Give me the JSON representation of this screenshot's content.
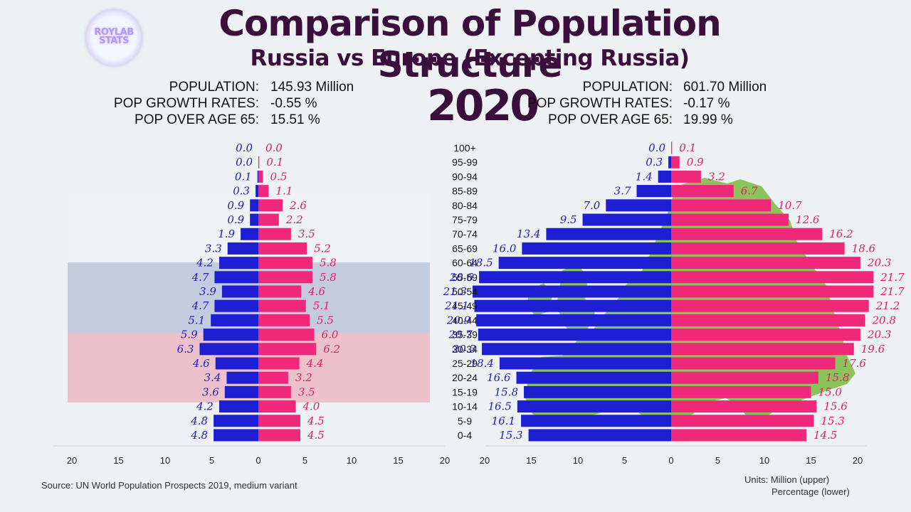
{
  "logo": {
    "line1": "ROYLAB",
    "line2": "STATS"
  },
  "title": "Comparison of Population Structure",
  "subtitle": "Russia vs Europe (Excepting Russia)",
  "year": "2020",
  "colors": {
    "male": "#1e1ed2",
    "female": "#f0287a",
    "title": "#3b0f3b",
    "europe_map": "#8cc35a"
  },
  "stats": {
    "russia": [
      {
        "label": "POPULATION:",
        "value": "145.93 Million"
      },
      {
        "label": "POP GROWTH RATES:",
        "value": "-0.55 %"
      },
      {
        "label": "POP OVER AGE 65:",
        "value": "15.51 %"
      }
    ],
    "europe": [
      {
        "label": "POPULATION:",
        "value": "601.70 Million"
      },
      {
        "label": "POP GROWTH RATES:",
        "value": "-0.17 %"
      },
      {
        "label": "POP OVER AGE 65:",
        "value": "19.99 %"
      }
    ]
  },
  "source": "Source: UN World Population Prospects 2019, medium variant",
  "units": {
    "line1": "Units: Million (upper)",
    "line2": "Percentage (lower)"
  },
  "chart_data": [
    {
      "type": "bar",
      "name": "russia",
      "categories": [
        "100+",
        "95-99",
        "90-94",
        "85-89",
        "80-84",
        "75-79",
        "70-74",
        "65-69",
        "60-64",
        "55-59",
        "50-54",
        "45-49",
        "40-44",
        "35-39",
        "30-34",
        "25-29",
        "20-24",
        "15-19",
        "10-14",
        "5-9",
        "0-4"
      ],
      "series": [
        {
          "name": "male",
          "values": [
            0.0,
            0.0,
            0.1,
            0.3,
            0.9,
            0.9,
            1.9,
            3.3,
            4.2,
            4.7,
            3.9,
            4.7,
            5.1,
            5.9,
            6.3,
            4.6,
            3.4,
            3.6,
            4.2,
            4.8,
            4.8
          ]
        },
        {
          "name": "female",
          "values": [
            0.0,
            0.1,
            0.5,
            1.1,
            2.6,
            2.2,
            3.5,
            5.2,
            5.8,
            5.8,
            4.6,
            5.1,
            5.5,
            6.0,
            6.2,
            4.4,
            3.2,
            3.5,
            4.0,
            4.5,
            4.5
          ]
        }
      ],
      "xlim": [
        -20,
        20
      ],
      "xticks": [
        "20",
        "15",
        "10",
        "5",
        "0",
        "5",
        "10",
        "15",
        "20"
      ]
    },
    {
      "type": "bar",
      "name": "europe",
      "categories": [
        "100+",
        "95-99",
        "90-94",
        "85-89",
        "80-84",
        "75-79",
        "70-74",
        "65-69",
        "60-64",
        "55-59",
        "50-54",
        "45-49",
        "40-44",
        "35-39",
        "30-34",
        "25-29",
        "20-24",
        "15-19",
        "10-14",
        "5-9",
        "0-4"
      ],
      "series": [
        {
          "name": "male",
          "values": [
            0.0,
            0.3,
            1.4,
            3.7,
            7.0,
            9.5,
            13.4,
            16.0,
            18.5,
            20.6,
            21.3,
            21.1,
            20.9,
            20.7,
            20.3,
            18.4,
            16.6,
            15.8,
            16.5,
            16.1,
            15.3
          ]
        },
        {
          "name": "female",
          "values": [
            0.1,
            0.9,
            3.2,
            6.7,
            10.7,
            12.6,
            16.2,
            18.6,
            20.3,
            21.7,
            21.7,
            21.2,
            20.8,
            20.3,
            19.6,
            17.6,
            15.8,
            15.0,
            15.6,
            15.3,
            14.5
          ]
        }
      ],
      "xlim": [
        -20,
        20
      ],
      "xticks": [
        "20",
        "15",
        "10",
        "5",
        "0",
        "5",
        "10",
        "15",
        "20"
      ]
    }
  ]
}
